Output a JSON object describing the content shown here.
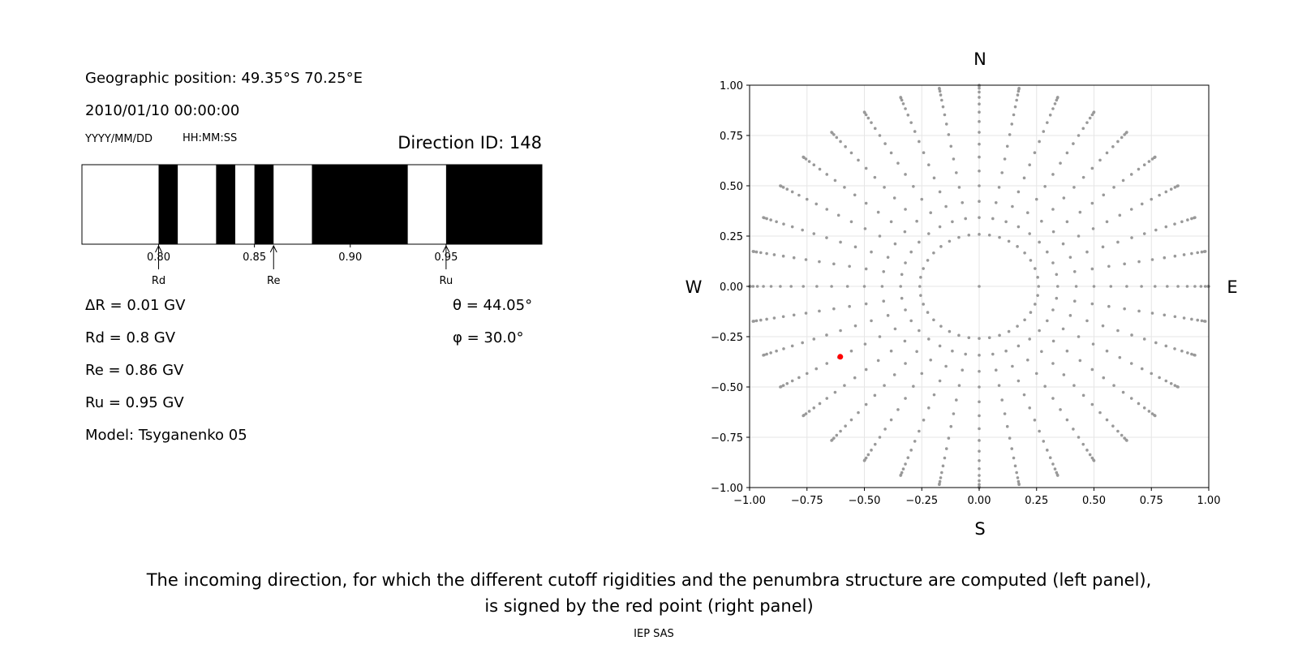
{
  "left_panel": {
    "geo_position": "Geographic position: 49.35°S 70.25°E",
    "datetime": "2010/01/10 00:00:00",
    "date_format": "YYYY/MM/DD",
    "time_format": "HH:MM:SS",
    "direction_id": "Direction ID: 148",
    "delta_r": "ΔR = 0.01 GV",
    "rd": "Rd = 0.8 GV",
    "re": "Re = 0.86 GV",
    "ru": "Ru = 0.95 GV",
    "model": "Model: Tsyganenko 05",
    "theta": "θ = 44.05°",
    "phi": "φ = 30.0°"
  },
  "right_panel": {
    "north": "N",
    "south": "S",
    "west": "W",
    "east": "E"
  },
  "caption_line1": "The incoming direction, for which the different cutoff rigidities and the penumbra structure are computed (left panel),",
  "caption_line2": "is signed by the red point (right panel)",
  "footer": "IEP SAS",
  "colors": {
    "allowed": "#ffffff",
    "forbidden": "#000000",
    "grid_point": "#999999",
    "selected": "#ff0000"
  },
  "chart_data": [
    {
      "type": "bar",
      "xlim": [
        0.76,
        1.0
      ],
      "ticks": [
        0.8,
        0.85,
        0.9,
        0.95
      ],
      "tick_labels": [
        "0.80",
        "0.85",
        "0.90",
        "0.95"
      ],
      "markers": [
        {
          "label": "Rd",
          "x": 0.8
        },
        {
          "label": "Re",
          "x": 0.86
        },
        {
          "label": "Ru",
          "x": 0.95
        }
      ],
      "forbidden_intervals": [
        [
          0.8,
          0.81
        ],
        [
          0.83,
          0.84
        ],
        [
          0.85,
          0.86
        ],
        [
          0.88,
          0.93
        ],
        [
          0.95,
          1.0
        ]
      ]
    },
    {
      "type": "scatter",
      "xlim": [
        -1.0,
        1.0
      ],
      "ylim": [
        -1.0,
        1.0
      ],
      "grid": true,
      "xticks": [
        -1.0,
        -0.75,
        -0.5,
        -0.25,
        0.0,
        0.25,
        0.5,
        0.75,
        1.0
      ],
      "xtick_labels": [
        "−1.00",
        "−0.75",
        "−0.50",
        "−0.25",
        "0.00",
        "0.25",
        "0.50",
        "0.75",
        "1.00"
      ],
      "yticks": [
        1.0,
        0.75,
        0.5,
        0.25,
        0.0,
        -0.25,
        -0.5,
        -0.75,
        -1.0
      ],
      "ytick_labels": [
        "1.00",
        "0.75",
        "0.50",
        "0.25",
        "0.00",
        "−0.25",
        "−0.50",
        "−0.75",
        "−1.00"
      ],
      "rays_azimuth_step_deg": 10,
      "selected_point": {
        "x": -0.605,
        "y": -0.35
      }
    }
  ]
}
